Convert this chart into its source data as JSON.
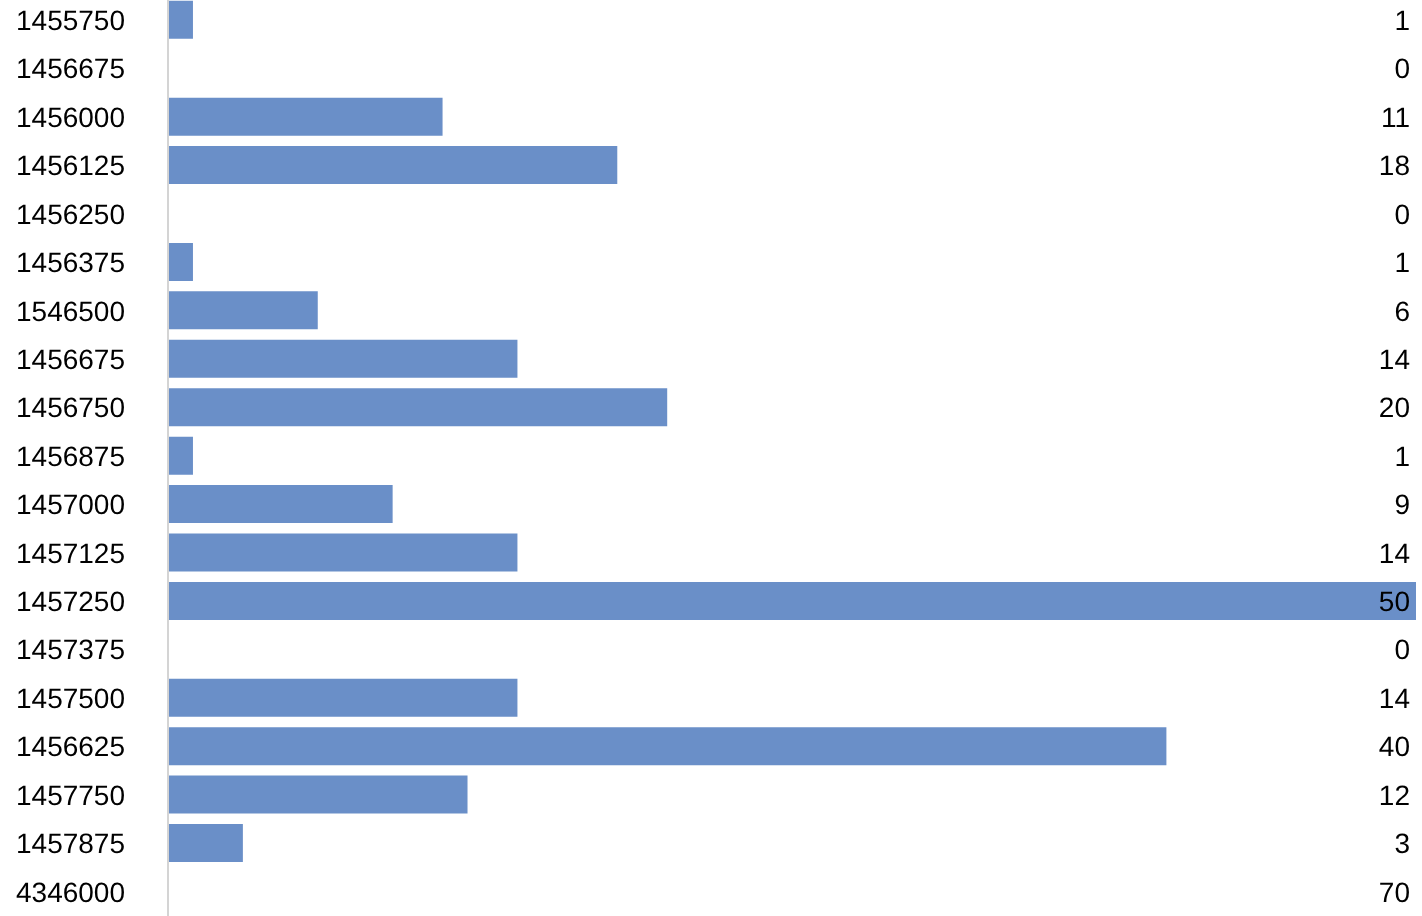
{
  "chart_data": {
    "type": "bar",
    "orientation": "horizontal",
    "categories": [
      "1455750",
      "1456675",
      "1456000",
      "1456125",
      "1456250",
      "1456375",
      "1546500",
      "1456675",
      "1456750",
      "1456875",
      "1457000",
      "1457125",
      "1457250",
      "1457375",
      "1457500",
      "1456625",
      "1457750",
      "1457875",
      "4346000"
    ],
    "values": [
      1,
      0,
      11,
      18,
      0,
      1,
      6,
      14,
      20,
      1,
      9,
      14,
      50,
      0,
      14,
      40,
      12,
      3,
      null
    ],
    "value_labels": [
      "1",
      "0",
      "11",
      "18",
      "0",
      "1",
      "6",
      "14",
      "20",
      "1",
      "9",
      "14",
      "50",
      "0",
      "14",
      "40",
      "12",
      "3",
      "70"
    ],
    "color": "#6a8fc8",
    "xlim": [
      0,
      50
    ],
    "tick_labels": "y"
  }
}
